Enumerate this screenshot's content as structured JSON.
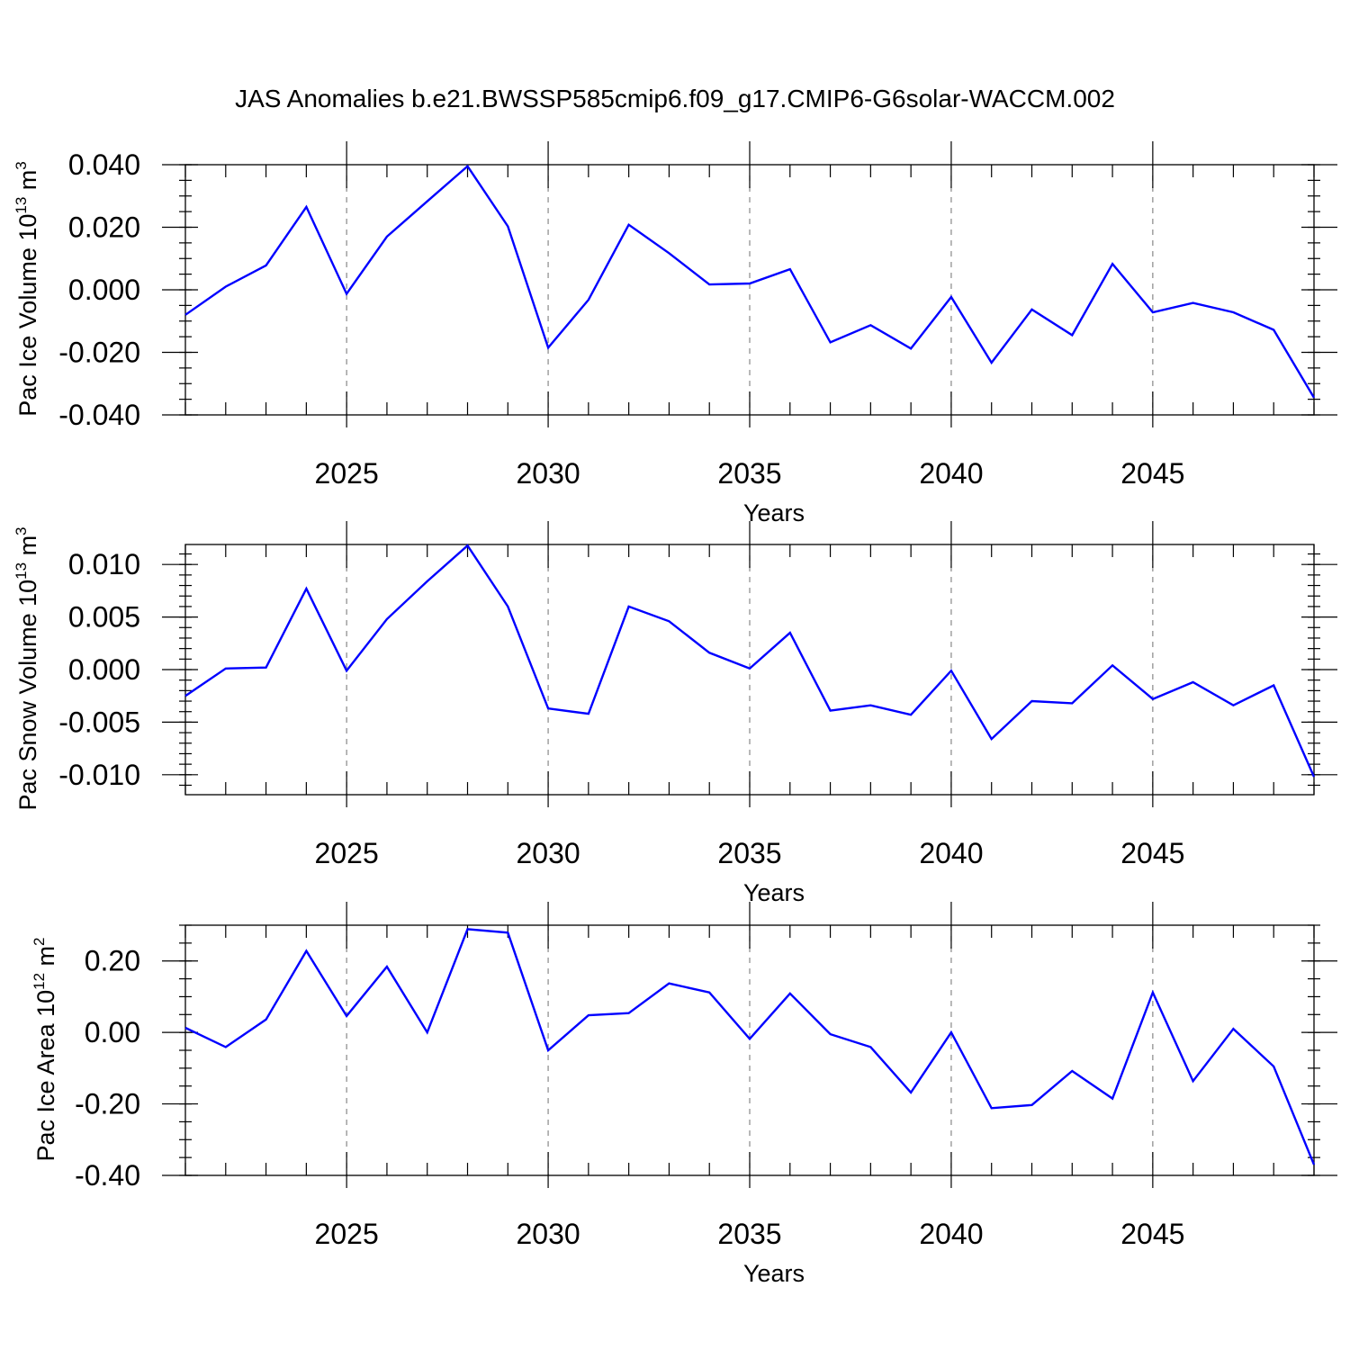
{
  "title": "JAS Anomalies b.e21.BWSSP585cmip6.f09_g17.CMIP6-G6solar-WACCM.002",
  "line_color": "#0000ff",
  "chart_data": [
    {
      "type": "line",
      "ylabel_main": "Pac Ice Volume 10",
      "ylabel_exp": "13",
      "ylabel_unit": "m",
      "ylabel_unit_exp": "3",
      "xlabel": "Years",
      "xlim": [
        2021,
        2049
      ],
      "ylim": [
        -0.04,
        0.04
      ],
      "xticks": [
        2025,
        2030,
        2035,
        2040,
        2045
      ],
      "xtick_labels": [
        "2025",
        "2030",
        "2035",
        "2040",
        "2045"
      ],
      "yticks": [
        0.04,
        0.02,
        0.0,
        -0.02,
        -0.04
      ],
      "ytick_labels": [
        "0.040",
        "0.020",
        "0.000",
        "-0.020",
        "-0.040"
      ],
      "y_minor_step": 0.005,
      "grid": "vertical dashed at major x ticks",
      "x": [
        2021,
        2022,
        2023,
        2024,
        2025,
        2026,
        2027,
        2028,
        2029,
        2030,
        2031,
        2032,
        2033,
        2034,
        2035,
        2036,
        2037,
        2038,
        2039,
        2040,
        2041,
        2042,
        2043,
        2044,
        2045,
        2046,
        2047,
        2048,
        2049
      ],
      "values": [
        -0.008,
        0.001,
        0.0078,
        0.0265,
        -0.0013,
        0.017,
        0.0283,
        0.0395,
        0.0203,
        -0.0185,
        -0.0032,
        0.0208,
        0.0117,
        0.0017,
        0.002,
        0.0066,
        -0.0168,
        -0.0113,
        -0.0188,
        -0.0023,
        -0.0233,
        -0.0063,
        -0.0145,
        0.0083,
        -0.0072,
        -0.0042,
        -0.0072,
        -0.0128,
        -0.0345
      ]
    },
    {
      "type": "line",
      "ylabel_main": "Pac Snow Volume 10",
      "ylabel_exp": "13",
      "ylabel_unit": "m",
      "ylabel_unit_exp": "3",
      "xlabel": "Years",
      "xlim": [
        2021,
        2049
      ],
      "ylim": [
        -0.0119,
        0.0119
      ],
      "xticks": [
        2025,
        2030,
        2035,
        2040,
        2045
      ],
      "xtick_labels": [
        "2025",
        "2030",
        "2035",
        "2040",
        "2045"
      ],
      "yticks": [
        0.01,
        0.005,
        0.0,
        -0.005,
        -0.01
      ],
      "ytick_labels": [
        "0.010",
        "0.005",
        "0.000",
        "-0.005",
        "-0.010"
      ],
      "y_minor_step": 0.001,
      "grid": "vertical dashed at major x ticks",
      "x": [
        2021,
        2022,
        2023,
        2024,
        2025,
        2026,
        2027,
        2028,
        2029,
        2030,
        2031,
        2032,
        2033,
        2034,
        2035,
        2036,
        2037,
        2038,
        2039,
        2040,
        2041,
        2042,
        2043,
        2044,
        2045,
        2046,
        2047,
        2048,
        2049
      ],
      "values": [
        -0.0025,
        0.0001,
        0.0002,
        0.0077,
        -0.0001,
        0.0048,
        0.0084,
        0.0118,
        0.006,
        -0.0037,
        -0.0042,
        0.006,
        0.0046,
        0.0016,
        0.0001,
        0.0035,
        -0.0039,
        -0.0034,
        -0.0043,
        -0.0001,
        -0.0066,
        -0.003,
        -0.0032,
        0.0004,
        -0.0028,
        -0.0012,
        -0.0034,
        -0.0015,
        -0.0102
      ]
    },
    {
      "type": "line",
      "ylabel_main": "Pac Ice Area 10",
      "ylabel_exp": "12",
      "ylabel_unit": "m",
      "ylabel_unit_exp": "2",
      "xlabel": "Years",
      "xlim": [
        2021,
        2049
      ],
      "ylim": [
        -0.4,
        0.3
      ],
      "xticks": [
        2025,
        2030,
        2035,
        2040,
        2045
      ],
      "xtick_labels": [
        "2025",
        "2030",
        "2035",
        "2040",
        "2045"
      ],
      "yticks": [
        0.2,
        0.0,
        -0.2,
        -0.4
      ],
      "ytick_labels": [
        "0.20",
        "0.00",
        "-0.20",
        "-0.40"
      ],
      "y_minor_step": 0.05,
      "grid": "vertical dashed at major x ticks",
      "x": [
        2021,
        2022,
        2023,
        2024,
        2025,
        2026,
        2027,
        2028,
        2029,
        2030,
        2031,
        2032,
        2033,
        2034,
        2035,
        2036,
        2037,
        2038,
        2039,
        2040,
        2041,
        2042,
        2043,
        2044,
        2045,
        2046,
        2047,
        2048,
        2049
      ],
      "values": [
        0.013,
        -0.041,
        0.036,
        0.228,
        0.046,
        0.184,
        0.0,
        0.289,
        0.279,
        -0.05,
        0.048,
        0.054,
        0.137,
        0.112,
        -0.018,
        0.109,
        -0.005,
        -0.041,
        -0.168,
        0.0,
        -0.212,
        -0.203,
        -0.108,
        -0.185,
        0.112,
        -0.136,
        0.01,
        -0.095,
        -0.37
      ]
    }
  ]
}
